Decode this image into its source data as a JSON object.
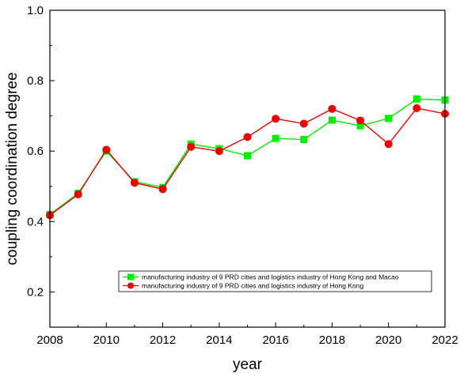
{
  "chart_data": {
    "type": "line",
    "xlabel": "year",
    "ylabel": "coupling coordination degree",
    "xlim": [
      2008,
      2022
    ],
    "ylim": [
      0.1,
      1.0
    ],
    "x_ticks": [
      2008,
      2010,
      2012,
      2014,
      2016,
      2018,
      2020,
      2022
    ],
    "y_ticks": [
      0.2,
      0.4,
      0.6,
      0.8,
      1.0
    ],
    "x_tick_labels": [
      "2008",
      "2010",
      "2012",
      "2014",
      "2016",
      "2018",
      "2020",
      "2022"
    ],
    "y_tick_labels": [
      "0.2",
      "0.4",
      "0.6",
      "0.8",
      "1.0"
    ],
    "x": [
      2008,
      2009,
      2010,
      2011,
      2012,
      2013,
      2014,
      2015,
      2016,
      2017,
      2018,
      2019,
      2020,
      2021,
      2022
    ],
    "legend_position": "bottom-right",
    "series": [
      {
        "name": "manufacturing industry of 9 PRD cities and logistics industry of Hong Kong and Macao",
        "color": "#00ee00",
        "marker": "square",
        "values": [
          0.42,
          0.48,
          0.6,
          0.513,
          0.497,
          0.62,
          0.607,
          0.587,
          0.636,
          0.633,
          0.688,
          0.672,
          0.693,
          0.748,
          0.745
        ]
      },
      {
        "name": "manufacturing industry of 9 PRD cities and logistics industry of Hong Kong",
        "color": "#ee0000",
        "marker": "circle",
        "values": [
          0.418,
          0.477,
          0.604,
          0.51,
          0.492,
          0.612,
          0.6,
          0.64,
          0.692,
          0.678,
          0.72,
          0.687,
          0.62,
          0.722,
          0.706
        ]
      }
    ]
  }
}
